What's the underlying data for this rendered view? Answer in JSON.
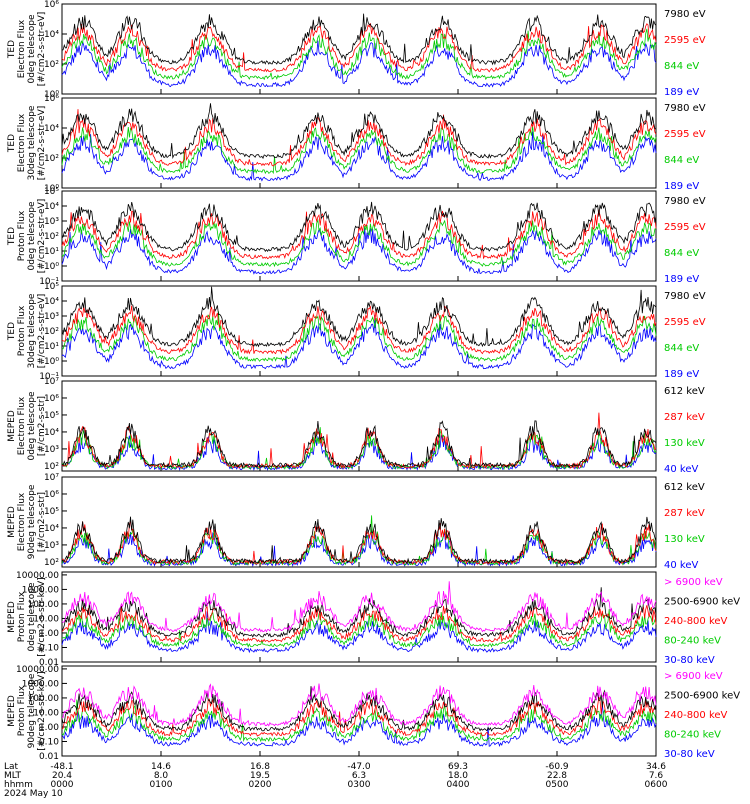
{
  "chart_data": [
    {
      "type": "line",
      "panel": "ted-electron-0deg",
      "ylabel_lines": [
        "TED",
        "Electron Flux",
        "0deg telescope",
        "[#/cm2-s-str-eV]"
      ],
      "yscale": "log",
      "ylim_exp": [
        0,
        6
      ],
      "ytick_labels": [
        "10⁰",
        "10²",
        "10⁴",
        "10⁶"
      ],
      "series": [
        {
          "name": "7980 eV",
          "color": "#000000"
        },
        {
          "name": "2595 eV",
          "color": "#ff0000"
        },
        {
          "name": "844 eV",
          "color": "#00cc00"
        },
        {
          "name": "189 eV",
          "color": "#0000ff"
        }
      ]
    },
    {
      "type": "line",
      "panel": "ted-electron-30deg",
      "ylabel_lines": [
        "TED",
        "Electron Flux",
        "30deg telescope",
        "[#/cm2-s-str-eV]"
      ],
      "yscale": "log",
      "ylim_exp": [
        0,
        6
      ],
      "ytick_labels": [
        "10⁰",
        "10²",
        "10⁴",
        "10⁶"
      ],
      "series": [
        {
          "name": "7980 eV",
          "color": "#000000"
        },
        {
          "name": "2595 eV",
          "color": "#ff0000"
        },
        {
          "name": "844 eV",
          "color": "#00cc00"
        },
        {
          "name": "189 eV",
          "color": "#0000ff"
        }
      ]
    },
    {
      "type": "line",
      "panel": "ted-proton-0deg",
      "ylabel_lines": [
        "TED",
        "Proton Flux",
        "0deg telescope",
        "[#/cm2-s-str-eV]"
      ],
      "yscale": "log",
      "ylim_exp": [
        -1,
        5
      ],
      "ytick_labels": [
        "10⁻¹",
        "10⁰",
        "10¹",
        "10²",
        "10³",
        "10⁴",
        "10⁵"
      ],
      "series": [
        {
          "name": "7980 eV",
          "color": "#000000"
        },
        {
          "name": "2595 eV",
          "color": "#ff0000"
        },
        {
          "name": "844 eV",
          "color": "#00cc00"
        },
        {
          "name": "189 eV",
          "color": "#0000ff"
        }
      ]
    },
    {
      "type": "line",
      "panel": "ted-proton-30deg",
      "ylabel_lines": [
        "TED",
        "Proton Flux",
        "30deg telescope",
        "[#/cm2-s-str-eV]"
      ],
      "yscale": "log",
      "ylim_exp": [
        -1,
        5
      ],
      "ytick_labels": [
        "10⁻¹",
        "10⁰",
        "10¹",
        "10²",
        "10³",
        "10⁴",
        "10⁵"
      ],
      "series": [
        {
          "name": "7980 eV",
          "color": "#000000"
        },
        {
          "name": "2595 eV",
          "color": "#ff0000"
        },
        {
          "name": "844 eV",
          "color": "#00cc00"
        },
        {
          "name": "189 eV",
          "color": "#0000ff"
        }
      ]
    },
    {
      "type": "line",
      "panel": "meped-electron-0deg",
      "ylabel_lines": [
        "MEPED",
        "Electron Flux",
        "0deg telescope",
        "[#/cm2-s-str]"
      ],
      "yscale": "log",
      "ylim_exp": [
        1.7,
        7
      ],
      "ytick_labels": [
        "10²",
        "10³",
        "10⁴",
        "10⁵",
        "10⁶",
        "10⁷"
      ],
      "series": [
        {
          "name": "612 keV",
          "color": "#000000"
        },
        {
          "name": "287 keV",
          "color": "#ff0000"
        },
        {
          "name": "130 keV",
          "color": "#00cc00"
        },
        {
          "name": "40 keV",
          "color": "#0000ff"
        }
      ]
    },
    {
      "type": "line",
      "panel": "meped-electron-90deg",
      "ylabel_lines": [
        "MEPED",
        "Electron Flux",
        "90deg telescope",
        "[#/cm2-s-str]"
      ],
      "yscale": "log",
      "ylim_exp": [
        1.7,
        7
      ],
      "ytick_labels": [
        "10²",
        "10³",
        "10⁴",
        "10⁵",
        "10⁶",
        "10⁷"
      ],
      "series": [
        {
          "name": "612 keV",
          "color": "#000000"
        },
        {
          "name": "287 keV",
          "color": "#ff0000"
        },
        {
          "name": "130 keV",
          "color": "#00cc00"
        },
        {
          "name": "40 keV",
          "color": "#0000ff"
        }
      ]
    },
    {
      "type": "line",
      "panel": "meped-proton-0deg",
      "ylabel_lines": [
        "MEPED",
        "Proton Flux",
        "0deg telescope",
        "[#/cm2-s-str-keV]"
      ],
      "yscale": "log",
      "ylim_exp": [
        -2,
        4.2
      ],
      "ytick_labels": [
        "0.01",
        "0.10",
        "1.00",
        "10.00",
        "100.00",
        "1000.00",
        "10000.00"
      ],
      "series": [
        {
          "name": "> 6900 keV",
          "color": "#ff00ff"
        },
        {
          "name": "2500-6900 keV",
          "color": "#000000"
        },
        {
          "name": "240-800 keV",
          "color": "#ff0000"
        },
        {
          "name": "80-240 keV",
          "color": "#00cc00"
        },
        {
          "name": "30-80 keV",
          "color": "#0000ff"
        }
      ]
    },
    {
      "type": "line",
      "panel": "meped-proton-90deg",
      "ylabel_lines": [
        "MEPED",
        "Proton Flux",
        "90deg telescope",
        "[#/cm2-s-str-keV]"
      ],
      "yscale": "log",
      "ylim_exp": [
        -2,
        4.2
      ],
      "ytick_labels": [
        "0.01",
        "0.10",
        "1.00",
        "10.00",
        "100.00",
        "1000.00",
        "10000.00"
      ],
      "series": [
        {
          "name": "> 6900 keV",
          "color": "#ff00ff"
        },
        {
          "name": "2500-6900 keV",
          "color": "#000000"
        },
        {
          "name": "240-800 keV",
          "color": "#ff0000"
        },
        {
          "name": "80-240 keV",
          "color": "#00cc00"
        },
        {
          "name": "30-80 keV",
          "color": "#0000ff"
        }
      ]
    }
  ],
  "time_axis": {
    "row_labels": [
      "Lat",
      "MLT",
      "hhmm",
      "2024 May 10"
    ],
    "ticks": [
      {
        "lat": "-48.1",
        "mlt": "20.4",
        "hhmm": "0000"
      },
      {
        "lat": "14.6",
        "mlt": "8.0",
        "hhmm": "0100"
      },
      {
        "lat": "16.8",
        "mlt": "19.5",
        "hhmm": "0200"
      },
      {
        "lat": "-47.0",
        "mlt": "6.3",
        "hhmm": "0300"
      },
      {
        "lat": "69.3",
        "mlt": "18.0",
        "hhmm": "0400"
      },
      {
        "lat": "-60.9",
        "mlt": "22.8",
        "hhmm": "0500"
      },
      {
        "lat": "34.6",
        "mlt": "7.6",
        "hhmm": "0600"
      }
    ]
  }
}
